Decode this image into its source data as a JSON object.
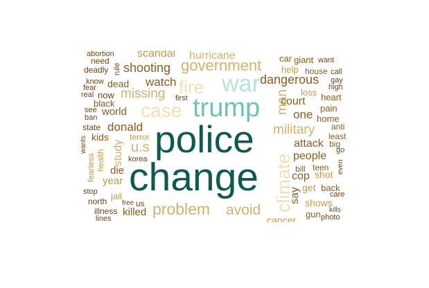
{
  "palette": {
    "dark_teal": "#0f5a4e",
    "teal": "#6fc3b3",
    "light_teal": "#b8e1da",
    "beige": "#f0e0b6",
    "tan": "#d2b26a",
    "gold": "#c49a45",
    "brown": "#8a5a1e",
    "dark_brown": "#6a4515"
  },
  "words": [
    {
      "text": "police",
      "color": "dark_teal",
      "orientation": "horizontal"
    },
    {
      "text": "change",
      "color": "dark_teal",
      "orientation": "horizontal"
    },
    {
      "text": "trump",
      "color": "teal",
      "orientation": "horizontal"
    },
    {
      "text": "war",
      "color": "light_teal",
      "orientation": "horizontal"
    },
    {
      "text": "case",
      "color": "beige",
      "orientation": "horizontal"
    },
    {
      "text": "fire",
      "color": "beige",
      "orientation": "horizontal"
    },
    {
      "text": "climate",
      "color": "beige",
      "orientation": "vertical"
    },
    {
      "text": "government",
      "color": "tan",
      "orientation": "horizontal"
    },
    {
      "text": "hurricane",
      "color": "tan",
      "orientation": "horizontal"
    },
    {
      "text": "problem",
      "color": "tan",
      "orientation": "horizontal"
    },
    {
      "text": "avoid",
      "color": "tan",
      "orientation": "horizontal"
    },
    {
      "text": "military",
      "color": "tan",
      "orientation": "horizontal"
    },
    {
      "text": "missing",
      "color": "tan",
      "orientation": "horizontal"
    },
    {
      "text": "man",
      "color": "tan",
      "orientation": "vertical"
    },
    {
      "text": "u.s",
      "color": "tan",
      "orientation": "horizontal"
    },
    {
      "text": "study",
      "color": "tan",
      "orientation": "vertical"
    },
    {
      "text": "shooting",
      "color": "brown",
      "orientation": "horizontal"
    },
    {
      "text": "dangerous",
      "color": "brown",
      "orientation": "horizontal"
    },
    {
      "text": "watch",
      "color": "brown",
      "orientation": "horizontal"
    },
    {
      "text": "donald",
      "color": "brown",
      "orientation": "horizontal"
    },
    {
      "text": "people",
      "color": "brown",
      "orientation": "horizontal"
    },
    {
      "text": "attack",
      "color": "brown",
      "orientation": "horizontal"
    },
    {
      "text": "court",
      "color": "brown",
      "orientation": "horizontal"
    },
    {
      "text": "one",
      "color": "brown",
      "orientation": "horizontal"
    },
    {
      "text": "cop",
      "color": "brown",
      "orientation": "horizontal"
    },
    {
      "text": "say",
      "color": "brown",
      "orientation": "vertical"
    },
    {
      "text": "world",
      "color": "brown",
      "orientation": "horizontal"
    },
    {
      "text": "year",
      "color": "gold",
      "orientation": "horizontal"
    },
    {
      "text": "die",
      "color": "brown",
      "orientation": "horizontal"
    },
    {
      "text": "kids",
      "color": "brown",
      "orientation": "horizontal"
    },
    {
      "text": "killed",
      "color": "brown",
      "orientation": "horizontal"
    },
    {
      "text": "scandal",
      "color": "gold",
      "orientation": "horizontal"
    },
    {
      "text": "dead",
      "color": "brown",
      "orientation": "horizontal"
    },
    {
      "text": "shows",
      "color": "gold",
      "orientation": "horizontal"
    },
    {
      "text": "get",
      "color": "gold",
      "orientation": "horizontal"
    },
    {
      "text": "shot",
      "color": "gold",
      "orientation": "horizontal"
    },
    {
      "text": "fearless",
      "color": "gold",
      "orientation": "vertical"
    },
    {
      "text": "health",
      "color": "gold",
      "orientation": "vertical"
    },
    {
      "text": "jail",
      "color": "gold",
      "orientation": "horizontal"
    },
    {
      "text": "cancer",
      "color": "gold",
      "orientation": "horizontal"
    },
    {
      "text": "loss",
      "color": "gold",
      "orientation": "horizontal"
    },
    {
      "text": "help",
      "color": "gold",
      "orientation": "horizontal"
    },
    {
      "text": "terror",
      "color": "gold",
      "orientation": "horizontal"
    },
    {
      "text": "home",
      "color": "brown",
      "orientation": "horizontal"
    },
    {
      "text": "pain",
      "color": "brown",
      "orientation": "horizontal"
    },
    {
      "text": "back",
      "color": "brown",
      "orientation": "horizontal"
    },
    {
      "text": "house",
      "color": "brown",
      "orientation": "horizontal"
    },
    {
      "text": "giant",
      "color": "brown",
      "orientation": "horizontal"
    },
    {
      "text": "car",
      "color": "brown",
      "orientation": "horizontal"
    },
    {
      "text": "heart",
      "color": "brown",
      "orientation": "horizontal"
    },
    {
      "text": "anti",
      "color": "brown",
      "orientation": "horizontal"
    },
    {
      "text": "least",
      "color": "brown",
      "orientation": "horizontal"
    },
    {
      "text": "big",
      "color": "brown",
      "orientation": "horizontal"
    },
    {
      "text": "teen",
      "color": "brown",
      "orientation": "horizontal"
    },
    {
      "text": "bill",
      "color": "brown",
      "orientation": "horizontal"
    },
    {
      "text": "gun",
      "color": "brown",
      "orientation": "horizontal"
    },
    {
      "text": "black",
      "color": "brown",
      "orientation": "horizontal"
    },
    {
      "text": "state",
      "color": "dark_brown",
      "orientation": "horizontal"
    },
    {
      "text": "deadly",
      "color": "dark_brown",
      "orientation": "horizontal"
    },
    {
      "text": "need",
      "color": "dark_brown",
      "orientation": "horizontal"
    },
    {
      "text": "abortion",
      "color": "dark_brown",
      "orientation": "horizontal"
    },
    {
      "text": "rule",
      "color": "dark_brown",
      "orientation": "vertical"
    },
    {
      "text": "know",
      "color": "dark_brown",
      "orientation": "horizontal"
    },
    {
      "text": "fear",
      "color": "dark_brown",
      "orientation": "horizontal"
    },
    {
      "text": "real",
      "color": "dark_brown",
      "orientation": "horizontal"
    },
    {
      "text": "now",
      "color": "dark_brown",
      "orientation": "horizontal"
    },
    {
      "text": "first",
      "color": "dark_brown",
      "orientation": "horizontal"
    },
    {
      "text": "see",
      "color": "dark_brown",
      "orientation": "horizontal"
    },
    {
      "text": "ban",
      "color": "dark_brown",
      "orientation": "horizontal"
    },
    {
      "text": "wants",
      "color": "dark_brown",
      "orientation": "vertical"
    },
    {
      "text": "korea",
      "color": "dark_brown",
      "orientation": "horizontal"
    },
    {
      "text": "stop",
      "color": "dark_brown",
      "orientation": "horizontal"
    },
    {
      "text": "north",
      "color": "dark_brown",
      "orientation": "horizontal"
    },
    {
      "text": "illness",
      "color": "dark_brown",
      "orientation": "horizontal"
    },
    {
      "text": "lines",
      "color": "dark_brown",
      "orientation": "horizontal"
    },
    {
      "text": "free",
      "color": "dark_brown",
      "orientation": "horizontal"
    },
    {
      "text": "us",
      "color": "dark_brown",
      "orientation": "horizontal"
    },
    {
      "text": "want",
      "color": "dark_brown",
      "orientation": "horizontal"
    },
    {
      "text": "call",
      "color": "dark_brown",
      "orientation": "horizontal"
    },
    {
      "text": "gay",
      "color": "dark_brown",
      "orientation": "horizontal"
    },
    {
      "text": "high",
      "color": "dark_brown",
      "orientation": "horizontal"
    },
    {
      "text": "go",
      "color": "dark_brown",
      "orientation": "horizontal"
    },
    {
      "text": "even",
      "color": "dark_brown",
      "orientation": "vertical"
    },
    {
      "text": "care",
      "color": "dark_brown",
      "orientation": "horizontal"
    },
    {
      "text": "kills",
      "color": "dark_brown",
      "orientation": "horizontal"
    },
    {
      "text": "photo",
      "color": "dark_brown",
      "orientation": "horizontal"
    }
  ]
}
